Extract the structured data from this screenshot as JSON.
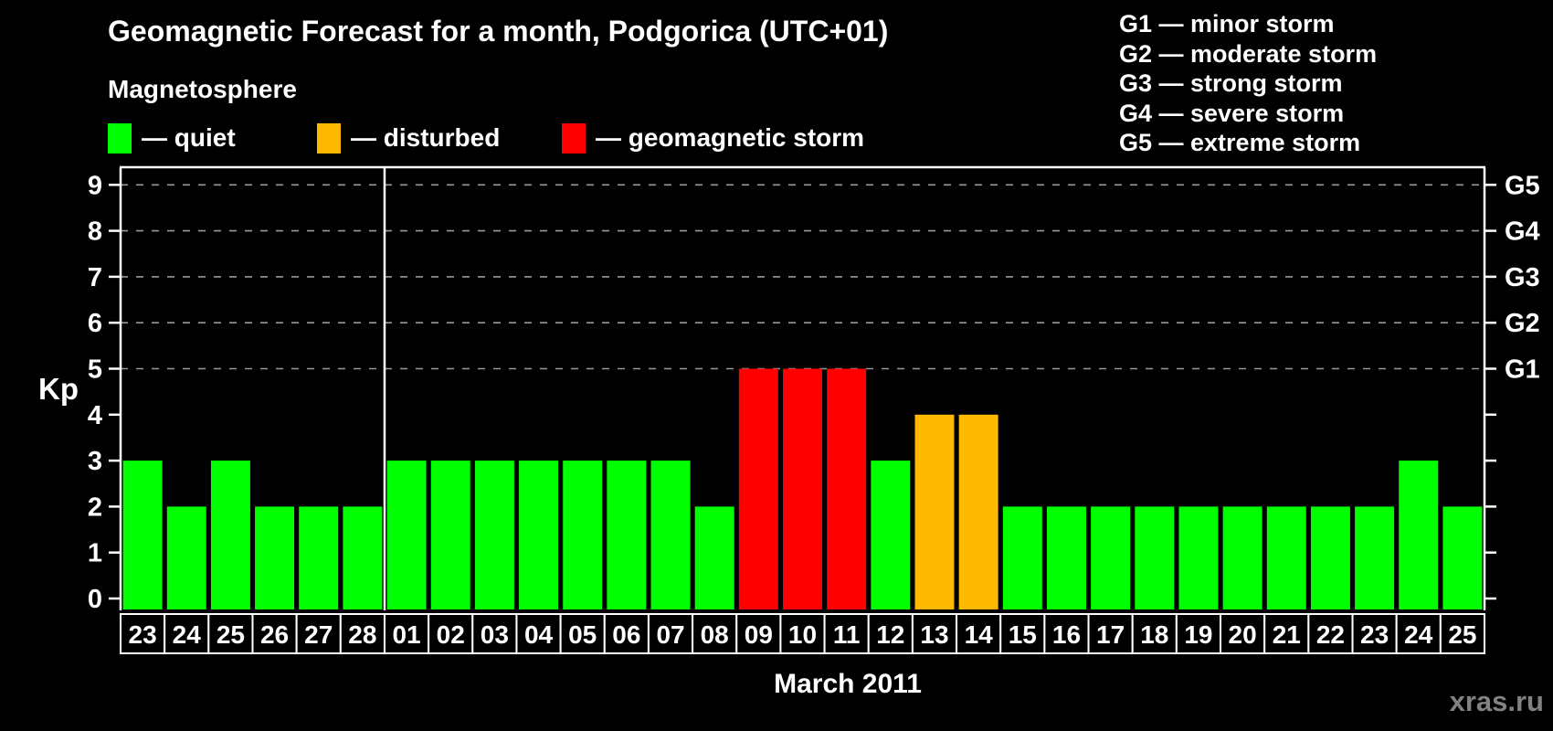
{
  "title": "Geomagnetic Forecast for a month, Podgorica (UTC+01)",
  "subtitle": "Magnetosphere",
  "magnetosphere_legend": [
    {
      "role": "quiet",
      "label": "— quiet",
      "color": "#00ff00"
    },
    {
      "role": "disturbed",
      "label": "— disturbed",
      "color": "#ffb900"
    },
    {
      "role": "storm",
      "label": "— geomagnetic storm",
      "color": "#ff0000"
    }
  ],
  "storm_scale_legend": [
    "G1 — minor storm",
    "G2 — moderate storm",
    "G3 — strong storm",
    "G4 — severe storm",
    "G5 — extreme storm"
  ],
  "watermark": "xras.ru",
  "chart_data": {
    "type": "bar",
    "title": "Geomagnetic Forecast for a month, Podgorica (UTC+01)",
    "ylabel": "Kp",
    "xlabel": "March 2011",
    "ylim": [
      0,
      9.4
    ],
    "yticks": [
      0,
      1,
      2,
      3,
      4,
      5,
      6,
      7,
      8,
      9
    ],
    "grid_kp_levels": [
      5,
      6,
      7,
      8,
      9
    ],
    "grid": "dashed-horizontal",
    "right_axis": [
      {
        "label": "G1",
        "kp": 5
      },
      {
        "label": "G2",
        "kp": 6
      },
      {
        "label": "G3",
        "kp": 7
      },
      {
        "label": "G4",
        "kp": 8
      },
      {
        "label": "G5",
        "kp": 9
      }
    ],
    "categories": [
      "23",
      "24",
      "25",
      "26",
      "27",
      "28",
      "01",
      "02",
      "03",
      "04",
      "05",
      "06",
      "07",
      "08",
      "09",
      "10",
      "11",
      "12",
      "13",
      "14",
      "15",
      "16",
      "17",
      "18",
      "19",
      "20",
      "21",
      "22",
      "23",
      "24",
      "25"
    ],
    "values": [
      3,
      2,
      3,
      2,
      2,
      2,
      3,
      3,
      3,
      3,
      3,
      3,
      3,
      2,
      5,
      5,
      5,
      3,
      4,
      4,
      2,
      2,
      2,
      2,
      2,
      2,
      2,
      2,
      2,
      3,
      2
    ],
    "bar_color_rule": {
      "storm_min_kp": 5,
      "disturbed_kp": 4
    },
    "divider_after_index": 6,
    "legend_position": "top-left"
  }
}
